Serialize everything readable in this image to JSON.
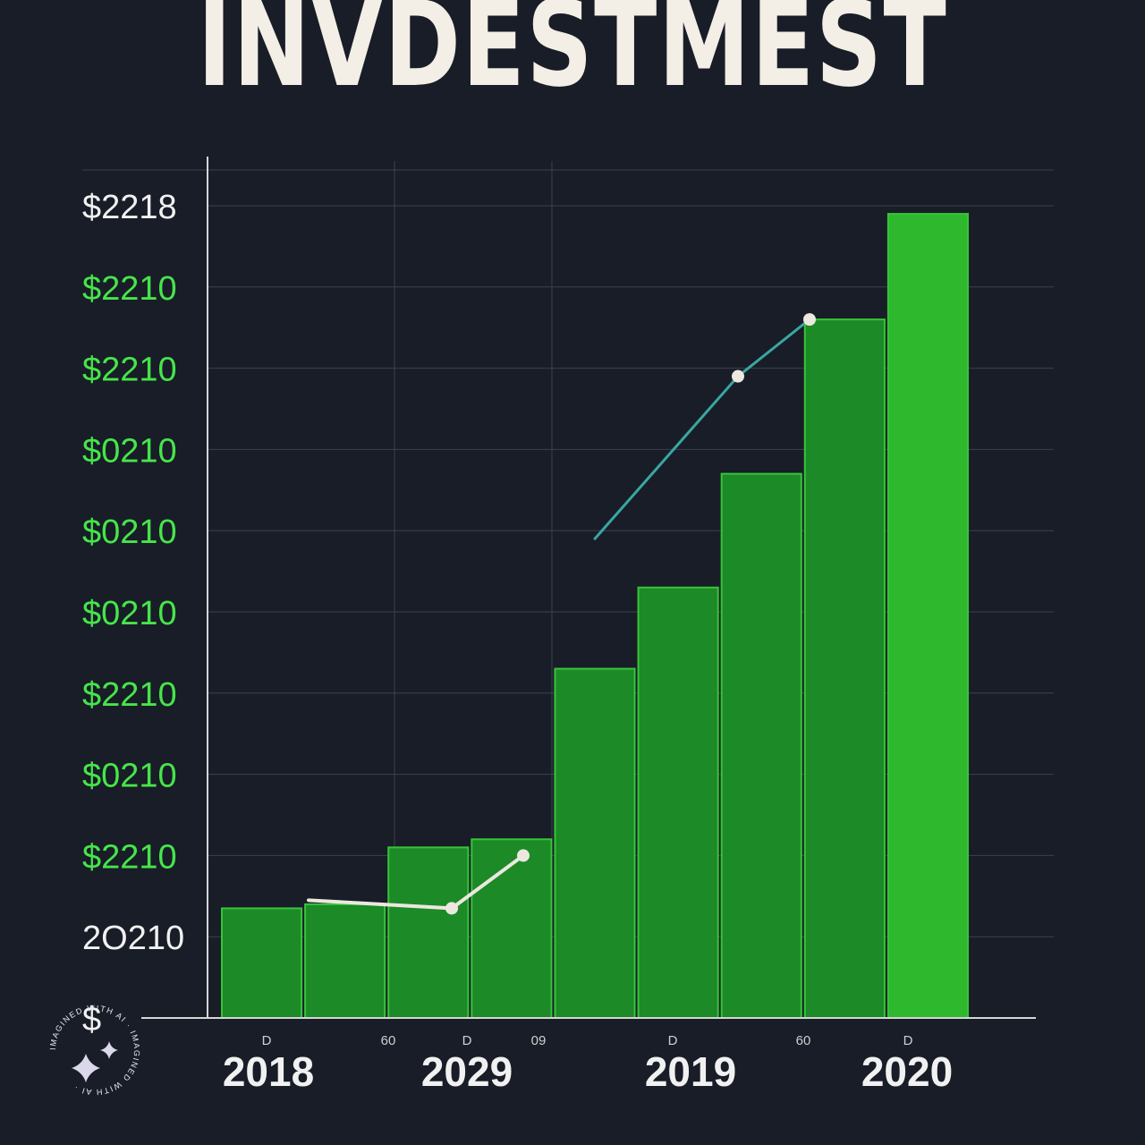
{
  "title": "INVDESTMEST",
  "chart_data": {
    "type": "bar",
    "title": "INVDESTMEST",
    "y_tick_labels": [
      "$",
      "2O210",
      "$2210",
      "$0210",
      "$2210",
      "$0210",
      "$0210",
      "$0210",
      "$2210",
      "$2210",
      "$2218"
    ],
    "x_tick_labels": [
      "2018",
      "2029",
      "2019",
      "2020"
    ],
    "minor_x_labels": [
      "D",
      "60",
      "D",
      "09",
      "D",
      "60",
      "D"
    ],
    "ylim": [
      0,
      10
    ],
    "grid": true,
    "values": [
      1.35,
      1.4,
      2.1,
      2.2,
      4.3,
      5.3,
      6.7,
      8.6,
      9.9
    ],
    "line_values": [
      1.45,
      1.4,
      1.35,
      2.0,
      5.9,
      6.9,
      7.9,
      8.6
    ],
    "colors": {
      "background": "#181d27",
      "bar": "#1c8a26",
      "bar_bright": "#2eb82e",
      "grid": "#3c4150",
      "axis": "#d6d6d6",
      "line_light": "#ece8df",
      "line_teal": "#3aa6a0",
      "tick_green": "#46e54a",
      "tick_white": "#f1f1f1"
    }
  },
  "watermark": {
    "text": "IMAGINED WITH AI · IMAGINED WITH AI ·"
  }
}
